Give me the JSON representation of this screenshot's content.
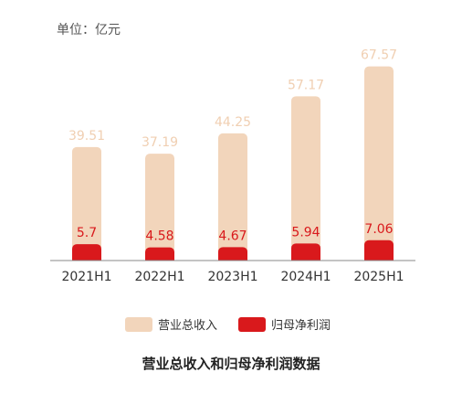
{
  "chart_data": {
    "type": "bar",
    "title": "营业总收入和归母净利润数据",
    "unit_label": "单位：亿元",
    "categories": [
      "2021H1",
      "2022H1",
      "2023H1",
      "2024H1",
      "2025H1"
    ],
    "series": [
      {
        "name": "营业总收入",
        "color": "#f2d5bb",
        "label_color": "#f0cfb2",
        "values": [
          39.51,
          37.19,
          44.25,
          57.17,
          67.57
        ]
      },
      {
        "name": "归母净利润",
        "color": "#d9191c",
        "label_color": "#d9191c",
        "values": [
          5.7,
          4.58,
          4.67,
          5.94,
          7.06
        ]
      }
    ],
    "overlapped": true,
    "ylim": [
      0,
      70
    ],
    "grid": false,
    "legend_position": "bottom"
  }
}
